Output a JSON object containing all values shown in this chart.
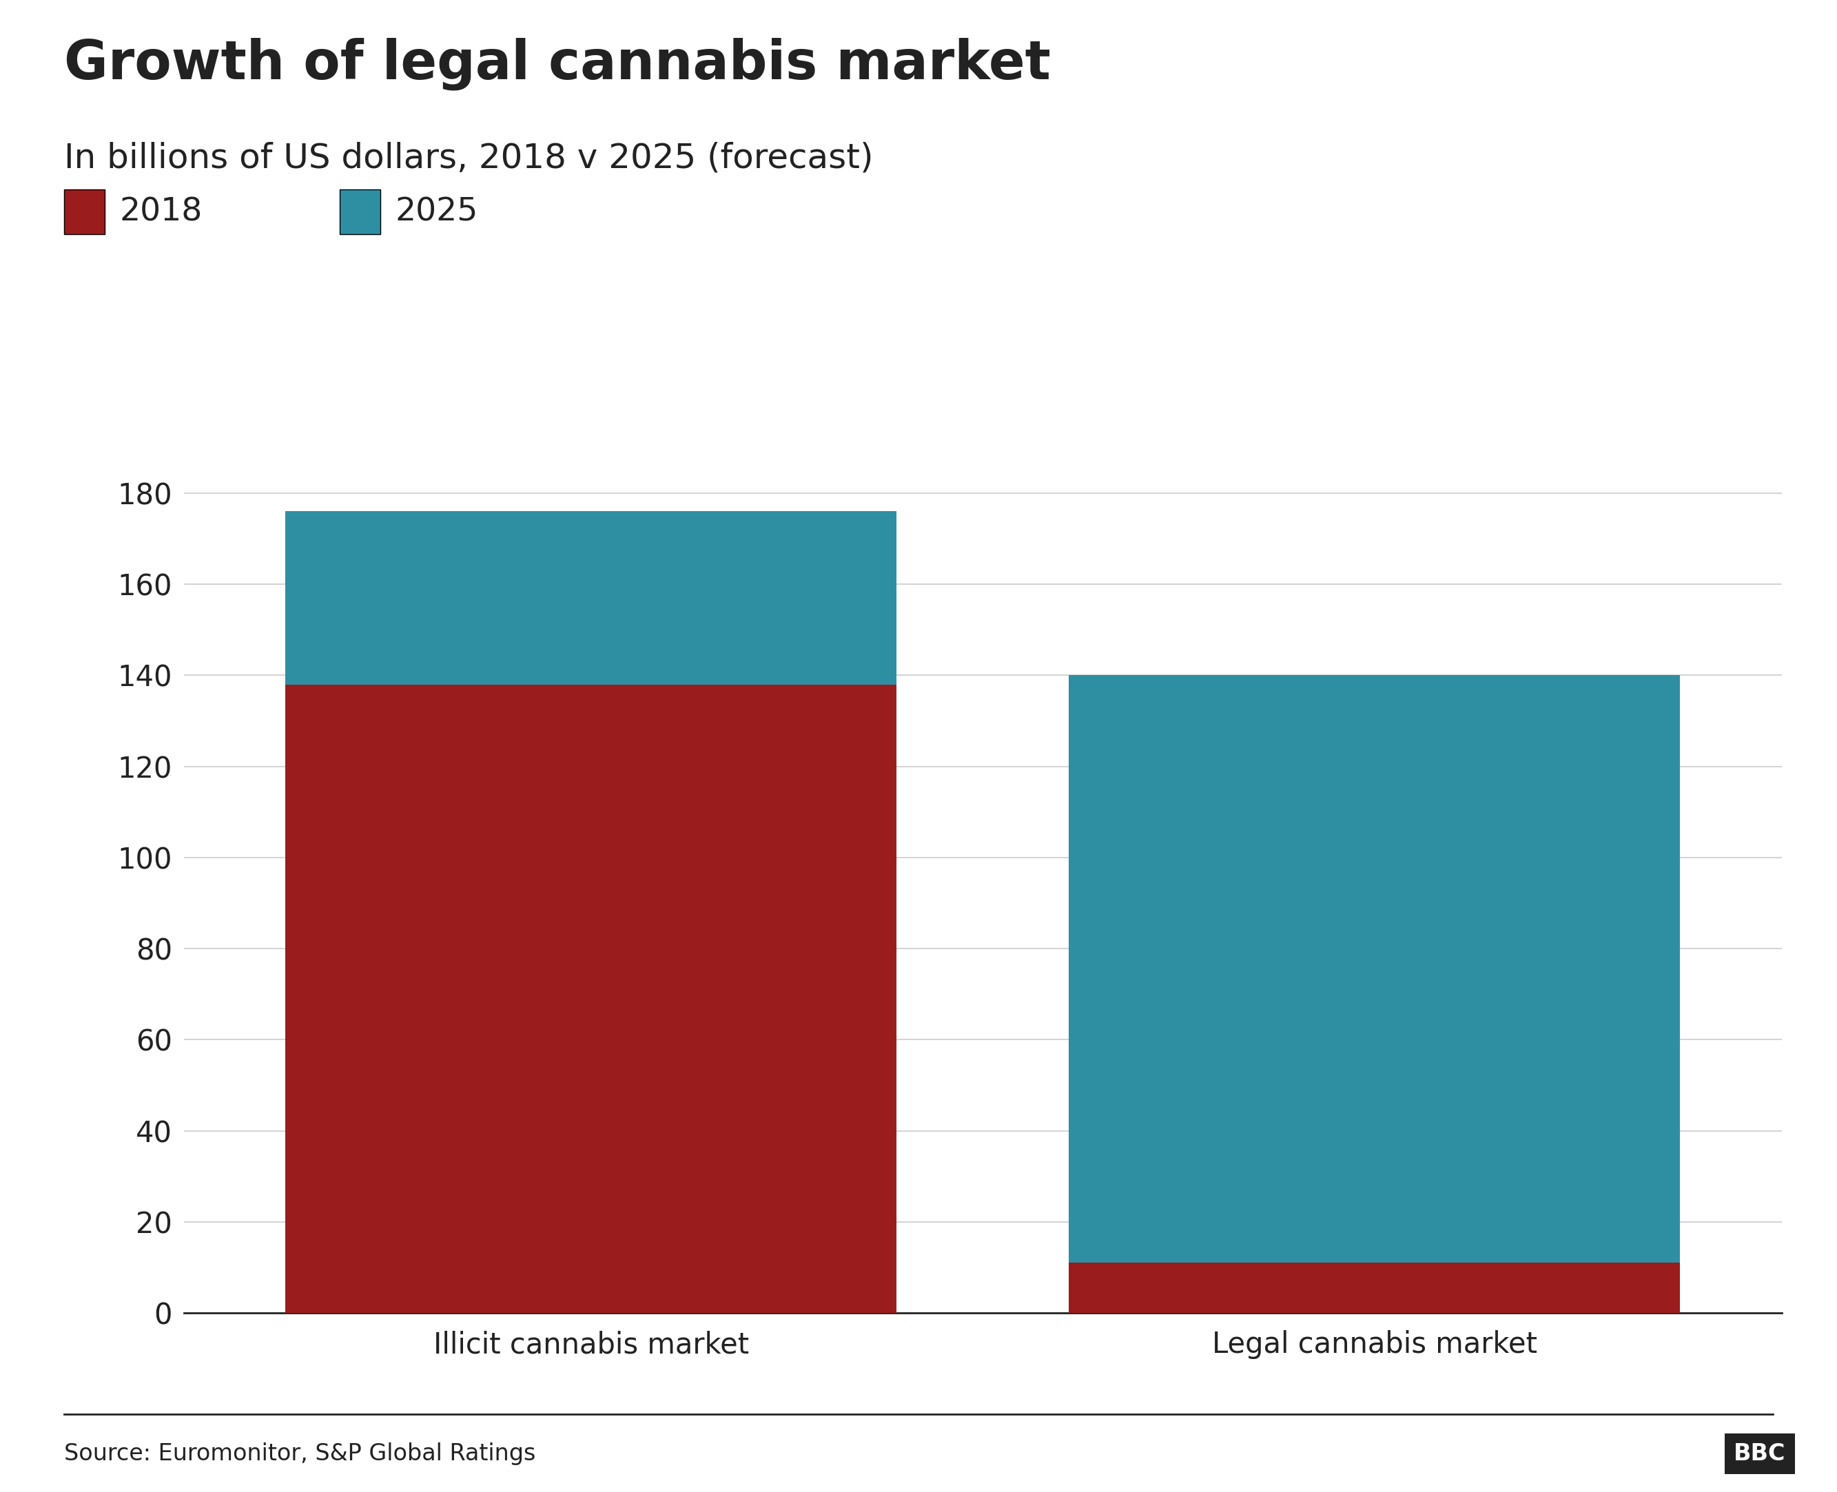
{
  "title": "Growth of legal cannabis market",
  "subtitle": "In billions of US dollars, 2018 v 2025 (forecast)",
  "categories": [
    "Illicit cannabis market",
    "Legal cannabis market"
  ],
  "values_2018": [
    138,
    11
  ],
  "values_2025_total": [
    176,
    140
  ],
  "color_2018": "#9b1c1c",
  "color_2025": "#2e8fa3",
  "ylim": [
    0,
    190
  ],
  "yticks": [
    0,
    20,
    40,
    60,
    80,
    100,
    120,
    140,
    160,
    180
  ],
  "legend_2018": "2018",
  "legend_2025": "2025",
  "source_text": "Source: Euromonitor, S&P Global Ratings",
  "bbc_text": "BBC",
  "background_color": "#ffffff",
  "grid_color": "#cccccc",
  "text_color": "#222222",
  "bar_width": 0.78
}
